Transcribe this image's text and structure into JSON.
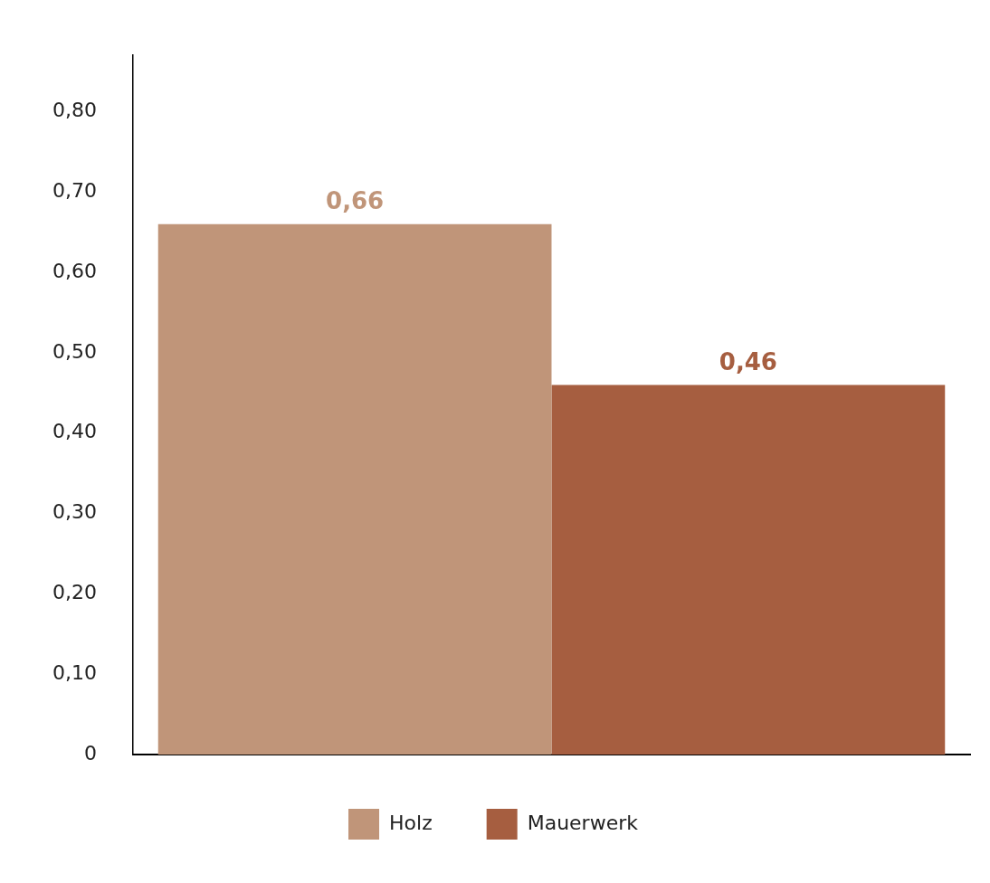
{
  "chart_data": {
    "type": "bar",
    "categories": [
      null
    ],
    "series": [
      {
        "name": "Holz",
        "color": "#c09579",
        "values": [
          0.66
        ],
        "value_labels": [
          "0,66"
        ]
      },
      {
        "name": "Mauerwerk",
        "color": "#a65e40",
        "values": [
          0.46
        ],
        "value_labels": [
          "0,46"
        ]
      }
    ],
    "ylim": [
      0,
      0.87
    ],
    "yticks": [
      {
        "value": 0,
        "label": "0"
      },
      {
        "value": 0.1,
        "label": "0,10"
      },
      {
        "value": 0.2,
        "label": "0,20"
      },
      {
        "value": 0.3,
        "label": "0,30"
      },
      {
        "value": 0.4,
        "label": "0,40"
      },
      {
        "value": 0.5,
        "label": "0,50"
      },
      {
        "value": 0.6,
        "label": "0,60"
      },
      {
        "value": 0.7,
        "label": "0,70"
      },
      {
        "value": 0.8,
        "label": "0,80"
      }
    ],
    "grid": false,
    "legend": "bottom",
    "tick_labels": "y"
  }
}
